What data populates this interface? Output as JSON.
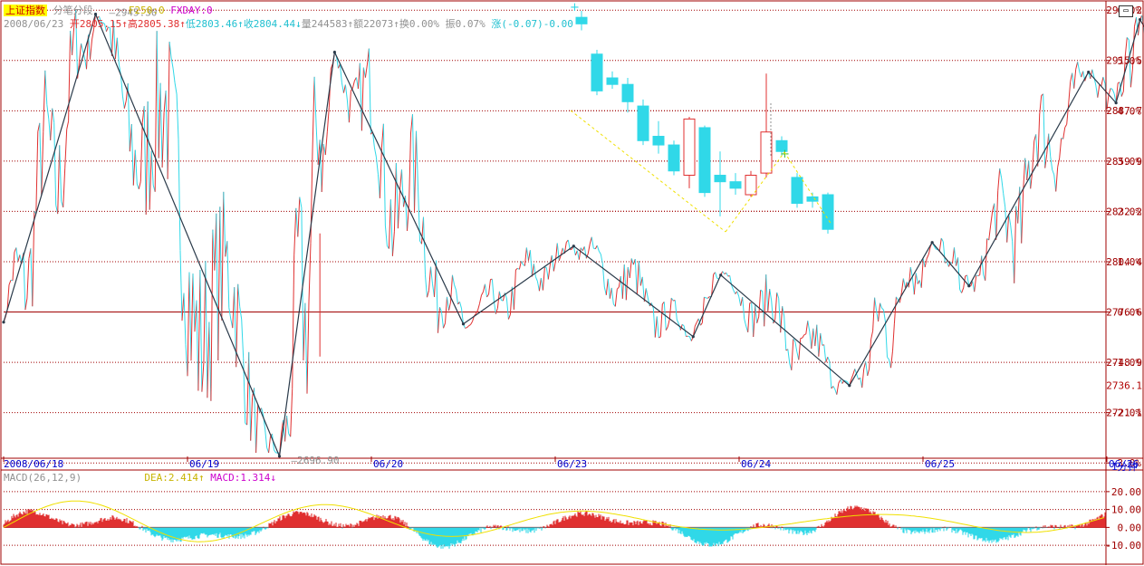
{
  "header": {
    "index_name": "上证指数",
    "chart_mode": "分笔分段",
    "f250": "F250:0",
    "fxday": "FXDAY:0",
    "date": "2008/06/23",
    "open": "开2805.15↑",
    "high": "高2805.38↑",
    "low": "低2803.46↑",
    "close": "收2804.44↓",
    "volume": "量244583↑",
    "amount": "额22073↑",
    "turnover": "换0.00%",
    "amplitude": "振0.07%",
    "change": "涨(-0.07)-0.00"
  },
  "macd_header": {
    "label": "MACD(26,12,9)",
    "dea": "DEA:2.414↑",
    "macd": "MACD:1.314↓"
  },
  "interval_button": "1分钟",
  "colors": {
    "up": "#e03030",
    "down": "#30d8e8",
    "zigzag": "#2a3a4a",
    "grid": "#a00000",
    "yellow": "#f0e000",
    "axis": "#a00000"
  },
  "chart_data": {
    "type": "line",
    "y_price_ticks": [
      "2943.2",
      "2915.5",
      "2887.7",
      "2859.9",
      "2832.2",
      "2804.4",
      "2776.6",
      "2748.9",
      "2736.1",
      "2721.1"
    ],
    "y_pct_ticks": [
      "6.0%",
      "5.0%",
      "4.0%",
      "3.0%",
      "2.0%",
      "1.0%",
      "0.0%",
      "-1.0%",
      "-2.0%",
      "-3.0%"
    ],
    "x_ticks": [
      "2008/06/18",
      "06/19",
      "06/20",
      "06/23",
      "06/24",
      "06/25",
      "06/26"
    ],
    "ylim": [
      2696.9,
      2945.3
    ],
    "annotations": [
      {
        "text": "2945.30",
        "label": "high"
      },
      {
        "text": "2696.90",
        "label": "low"
      }
    ],
    "zigzag_pivots": [
      {
        "x": 0,
        "y": 2771
      },
      {
        "x": 0.5,
        "y": 2941
      },
      {
        "x": 1.5,
        "y": 2697
      },
      {
        "x": 1.8,
        "y": 2920
      },
      {
        "x": 2.5,
        "y": 2770
      },
      {
        "x": 3.1,
        "y": 2813
      },
      {
        "x": 3.75,
        "y": 2763
      },
      {
        "x": 3.9,
        "y": 2797
      },
      {
        "x": 4.6,
        "y": 2736
      },
      {
        "x": 5.05,
        "y": 2815
      },
      {
        "x": 5.25,
        "y": 2791
      },
      {
        "x": 5.9,
        "y": 2909
      },
      {
        "x": 6.05,
        "y": 2892
      },
      {
        "x": 6.18,
        "y": 2938
      },
      {
        "x": 6.3,
        "y": 2918
      }
    ],
    "candles": [
      {
        "o": 2928,
        "c": 2925,
        "h": 2931,
        "l": 2922,
        "up": false
      },
      {
        "o": 2911,
        "c": 2894,
        "h": 2913,
        "l": 2892,
        "up": false
      },
      {
        "o": 2900,
        "c": 2897,
        "h": 2903,
        "l": 2895,
        "up": false
      },
      {
        "o": 2897,
        "c": 2889,
        "h": 2900,
        "l": 2884,
        "up": false
      },
      {
        "o": 2887,
        "c": 2871,
        "h": 2890,
        "l": 2869,
        "up": false
      },
      {
        "o": 2873,
        "c": 2869,
        "h": 2880,
        "l": 2865,
        "up": false
      },
      {
        "o": 2869,
        "c": 2857,
        "h": 2871,
        "l": 2855,
        "up": false
      },
      {
        "o": 2855,
        "c": 2881,
        "h": 2882,
        "l": 2849,
        "up": true
      },
      {
        "o": 2877,
        "c": 2847,
        "h": 2878,
        "l": 2845,
        "up": false
      },
      {
        "o": 2855,
        "c": 2852,
        "h": 2866,
        "l": 2836,
        "up": false
      },
      {
        "o": 2852,
        "c": 2849,
        "h": 2856,
        "l": 2846,
        "up": false
      },
      {
        "o": 2846,
        "c": 2855,
        "h": 2857,
        "l": 2845,
        "up": true
      },
      {
        "o": 2856,
        "c": 2875,
        "h": 2902,
        "l": 2854,
        "up": true
      },
      {
        "o": 2871,
        "c": 2866,
        "h": 2873,
        "l": 2864,
        "up": false
      },
      {
        "o": 2854,
        "c": 2842,
        "h": 2856,
        "l": 2840,
        "up": false
      },
      {
        "o": 2845,
        "c": 2843,
        "h": 2847,
        "l": 2840,
        "up": false
      },
      {
        "o": 2846,
        "c": 2830,
        "h": 2847,
        "l": 2828,
        "up": false
      }
    ],
    "macd": {
      "ylim": [
        -15,
        25
      ],
      "ticks": [
        "20.00",
        "10.00",
        "0.00",
        "-10.00"
      ]
    }
  }
}
